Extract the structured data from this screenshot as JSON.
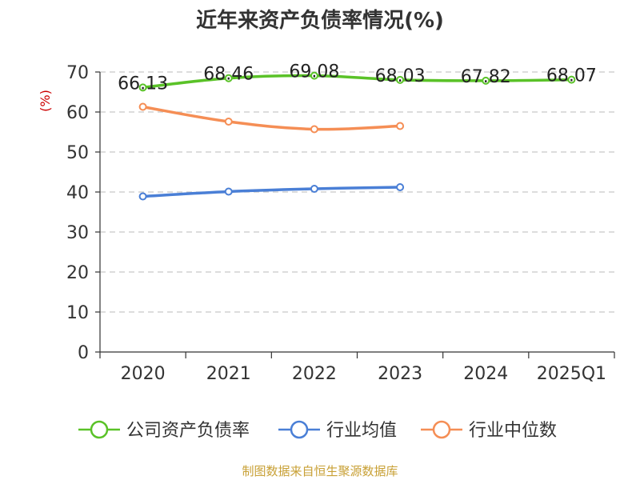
{
  "chart_data": {
    "type": "line",
    "title": "近年来资产负债率情况(%)",
    "unit": "(%)",
    "categories": [
      "2020",
      "2021",
      "2022",
      "2023",
      "2024",
      "2025Q1"
    ],
    "ylim": [
      0,
      70
    ],
    "yticks": [
      0,
      10,
      20,
      30,
      40,
      50,
      60,
      70
    ],
    "grid": true,
    "legend_position": "bottom",
    "series": [
      {
        "name": "公司资产负债率",
        "color": "#5ac228",
        "values": [
          66.13,
          68.46,
          69.08,
          68.03,
          67.82,
          68.07
        ],
        "labels": [
          "66.13",
          "68.46",
          "69.08",
          "68.03",
          "67.82",
          "68.07"
        ]
      },
      {
        "name": "行业均值",
        "color": "#4a7fd6",
        "values": [
          38.9,
          40.1,
          40.8,
          41.2,
          null,
          null
        ]
      },
      {
        "name": "行业中位数",
        "color": "#f58e55",
        "values": [
          61.3,
          57.6,
          55.7,
          56.5,
          null,
          null
        ]
      }
    ],
    "source": "制图数据来自恒生聚源数据库"
  }
}
